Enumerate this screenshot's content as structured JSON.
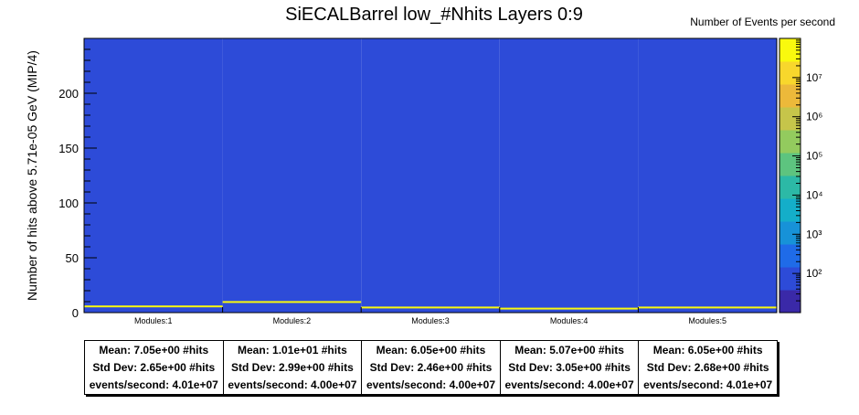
{
  "chart_data": {
    "type": "heatmap",
    "title": "SiECALBarrel low_#Nhits Layers 0:9",
    "xlabel": "",
    "ylabel": "Number of hits above 5.71e-05 GeV  (MIP/4)",
    "zlabel": "Number of Events per second",
    "categories": [
      "Modules:1",
      "Modules:2",
      "Modules:3",
      "Modules:4",
      "Modules:5"
    ],
    "ylim": [
      0,
      250
    ],
    "y_ticks": [
      "0",
      "50",
      "100",
      "150",
      "200"
    ],
    "y_tick_values": [
      0,
      50,
      100,
      150,
      200
    ],
    "zscale": "log",
    "zlim": [
      10,
      100000000
    ],
    "z_ticks": [
      "10²",
      "10³",
      "10⁴",
      "10⁵",
      "10⁶",
      "10⁷"
    ],
    "z_tick_values": [
      100,
      1000,
      10000,
      100000,
      1000000,
      10000000
    ],
    "peak_bin_y": [
      6,
      10,
      5,
      4,
      5
    ],
    "peak_value": 40000000,
    "background_value": 70,
    "palette": [
      "#3a29a8",
      "#2d4bd8",
      "#1f6be8",
      "#1792d8",
      "#14aec9",
      "#2cb9a6",
      "#5dc47f",
      "#93cb5e",
      "#c6c54a",
      "#ecb93a",
      "#f8d72c",
      "#f9f90e"
    ],
    "stats": [
      {
        "mean": "Mean: 7.05e+00 #hits",
        "std": "Std Dev: 2.65e+00 #hits",
        "rate": "events/second: 4.01e+07"
      },
      {
        "mean": "Mean: 1.01e+01 #hits",
        "std": "Std Dev: 2.99e+00 #hits",
        "rate": "events/second: 4.00e+07"
      },
      {
        "mean": "Mean: 6.05e+00 #hits",
        "std": "Std Dev: 2.46e+00 #hits",
        "rate": "events/second: 4.00e+07"
      },
      {
        "mean": "Mean: 5.07e+00 #hits",
        "std": "Std Dev: 3.05e+00 #hits",
        "rate": "events/second: 4.00e+07"
      },
      {
        "mean": "Mean: 6.05e+00 #hits",
        "std": "Std Dev: 2.68e+00 #hits",
        "rate": "events/second: 4.01e+07"
      }
    ]
  }
}
